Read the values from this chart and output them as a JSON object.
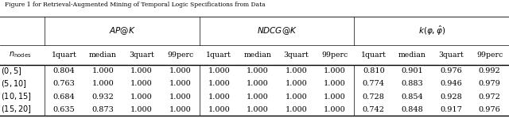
{
  "title": "Figure 1 for Retrieval-Augmented Mining of Temporal Logic Specifications from Data",
  "rows": [
    {
      "label": "(0, 5]",
      "ap": [
        0.804,
        1.0,
        1.0,
        1.0
      ],
      "ndcg": [
        1.0,
        1.0,
        1.0,
        1.0
      ],
      "k": [
        0.81,
        0.901,
        0.976,
        0.992
      ]
    },
    {
      "label": "(5, 10]",
      "ap": [
        0.763,
        1.0,
        1.0,
        1.0
      ],
      "ndcg": [
        1.0,
        1.0,
        1.0,
        1.0
      ],
      "k": [
        0.774,
        0.883,
        0.946,
        0.979
      ]
    },
    {
      "label": "(10, 15]",
      "ap": [
        0.684,
        0.932,
        1.0,
        1.0
      ],
      "ndcg": [
        1.0,
        1.0,
        1.0,
        1.0
      ],
      "k": [
        0.728,
        0.854,
        0.928,
        0.972
      ]
    },
    {
      "label": "(15, 20]",
      "ap": [
        0.635,
        0.873,
        1.0,
        1.0
      ],
      "ndcg": [
        1.0,
        1.0,
        1.0,
        1.0
      ],
      "k": [
        0.742,
        0.848,
        0.917,
        0.976
      ]
    }
  ],
  "col_labels": [
    "1quart",
    "median",
    "3quart",
    "99perc"
  ],
  "bg_color": "#ffffff",
  "text_color": "#000000",
  "line_color": "#000000",
  "fs": 7.0,
  "hfs": 7.5
}
